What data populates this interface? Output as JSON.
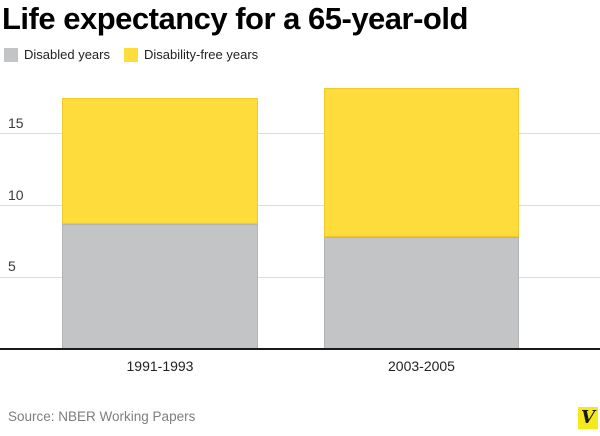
{
  "title": "Life expectancy for a 65-year-old",
  "chart_data": {
    "type": "bar",
    "stacked": true,
    "title": "Life expectancy for a 65-year-old",
    "categories": [
      "1991-1993",
      "2003-2005"
    ],
    "series": [
      {
        "name": "Disabled years",
        "values": [
          8.7,
          7.8
        ],
        "color": "#c3c4c6",
        "border": "#b2b3b5"
      },
      {
        "name": "Disability-free years",
        "values": [
          8.8,
          10.4
        ],
        "color": "#fddc3c",
        "border": "#eec92f"
      }
    ],
    "totals": [
      17.5,
      18.2
    ],
    "yticks": [
      5,
      10,
      15
    ],
    "ylim": [
      0,
      18.6
    ],
    "xlabel": "",
    "ylabel": "",
    "grid": true,
    "legend_position": "top-left"
  },
  "footer": {
    "source": "Source: NBER Working Papers",
    "logo_letter": "V",
    "logo_color": "#f5e91c"
  },
  "colors": {
    "background": "#ffffff",
    "gridline": "#dcdcdc",
    "axis": "#1a1a1a",
    "title_text": "#000000",
    "tick_text": "#3a3a3a",
    "source_text": "#7e7e7e"
  }
}
